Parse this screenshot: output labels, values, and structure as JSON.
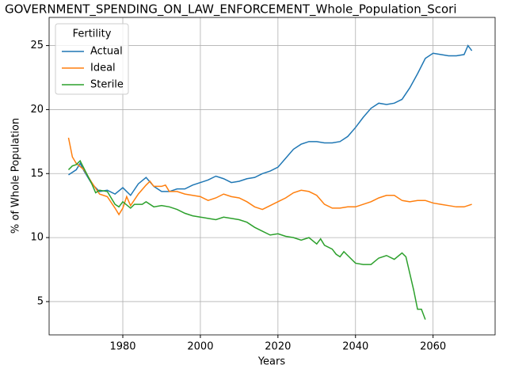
{
  "chart_data": {
    "type": "line",
    "title": "GOVERNMENT_SPENDING_ON_LAW_ENFORCEMENT_Whole_Population_Scori",
    "xlabel": "Years",
    "ylabel": "% of Whole Population",
    "legend_title": "Fertility",
    "legend": "upper left",
    "grid": true,
    "xlim": [
      1961,
      2076
    ],
    "ylim": [
      2.4,
      27.2
    ],
    "xticks": [
      1980,
      2000,
      2020,
      2040,
      2060
    ],
    "yticks": [
      5,
      10,
      15,
      20,
      25
    ],
    "series": [
      {
        "name": "Actual",
        "color": "#1f77b4",
        "x": [
          1966,
          1968,
          1969,
          1970,
          1972,
          1974,
          1976,
          1978,
          1980,
          1982,
          1984,
          1986,
          1988,
          1990,
          1992,
          1994,
          1996,
          1998,
          2000,
          2002,
          2004,
          2006,
          2008,
          2010,
          2012,
          2014,
          2016,
          2018,
          2020,
          2022,
          2024,
          2026,
          2028,
          2030,
          2032,
          2034,
          2036,
          2038,
          2040,
          2042,
          2044,
          2046,
          2048,
          2050,
          2052,
          2054,
          2056,
          2058,
          2060,
          2062,
          2064,
          2066,
          2068,
          2069,
          2070
        ],
        "values": [
          14.9,
          15.3,
          15.8,
          15.2,
          14.2,
          13.6,
          13.7,
          13.4,
          13.9,
          13.3,
          14.2,
          14.7,
          14.0,
          13.6,
          13.6,
          13.8,
          13.8,
          14.1,
          14.3,
          14.5,
          14.8,
          14.6,
          14.3,
          14.4,
          14.6,
          14.7,
          15.0,
          15.2,
          15.5,
          16.2,
          16.9,
          17.3,
          17.5,
          17.5,
          17.4,
          17.4,
          17.5,
          17.9,
          18.6,
          19.4,
          20.1,
          20.5,
          20.4,
          20.5,
          20.8,
          21.7,
          22.8,
          24.0,
          24.4,
          24.3,
          24.2,
          24.2,
          24.3,
          25.0,
          24.6
        ]
      },
      {
        "name": "Ideal",
        "color": "#ff7f0e",
        "x": [
          1966,
          1967,
          1968,
          1970,
          1972,
          1974,
          1976,
          1978,
          1979,
          1980,
          1981,
          1982,
          1984,
          1986,
          1987,
          1988,
          1990,
          1991,
          1992,
          1994,
          1996,
          1998,
          2000,
          2002,
          2004,
          2006,
          2008,
          2010,
          2012,
          2014,
          2016,
          2018,
          2020,
          2022,
          2024,
          2026,
          2028,
          2030,
          2032,
          2034,
          2036,
          2038,
          2040,
          2042,
          2044,
          2046,
          2048,
          2050,
          2052,
          2054,
          2056,
          2058,
          2060,
          2062,
          2064,
          2066,
          2068,
          2070
        ],
        "values": [
          17.8,
          16.3,
          15.8,
          15.3,
          14.3,
          13.4,
          13.2,
          12.3,
          11.8,
          12.3,
          13.2,
          12.5,
          13.4,
          14.1,
          14.4,
          14.0,
          14.0,
          14.1,
          13.6,
          13.6,
          13.4,
          13.3,
          13.2,
          12.9,
          13.1,
          13.4,
          13.2,
          13.1,
          12.8,
          12.4,
          12.2,
          12.5,
          12.8,
          13.1,
          13.5,
          13.7,
          13.6,
          13.3,
          12.6,
          12.3,
          12.3,
          12.4,
          12.4,
          12.6,
          12.8,
          13.1,
          13.3,
          13.3,
          12.9,
          12.8,
          12.9,
          12.9,
          12.7,
          12.6,
          12.5,
          12.4,
          12.4,
          12.6
        ]
      },
      {
        "name": "Sterile",
        "color": "#2ca02c",
        "x": [
          1966,
          1967,
          1968,
          1969,
          1970,
          1972,
          1973,
          1974,
          1976,
          1978,
          1979,
          1980,
          1982,
          1983,
          1985,
          1986,
          1988,
          1990,
          1992,
          1994,
          1996,
          1998,
          2000,
          2002,
          2004,
          2006,
          2008,
          2010,
          2012,
          2014,
          2016,
          2018,
          2020,
          2022,
          2024,
          2026,
          2028,
          2030,
          2031,
          2032,
          2034,
          2035,
          2036,
          2037,
          2038,
          2040,
          2042,
          2044,
          2046,
          2048,
          2050,
          2052,
          2053,
          2054,
          2055,
          2056,
          2057,
          2058
        ],
        "values": [
          15.3,
          15.6,
          15.7,
          16.0,
          15.4,
          14.2,
          13.5,
          13.7,
          13.6,
          12.6,
          12.4,
          12.8,
          12.3,
          12.6,
          12.6,
          12.8,
          12.4,
          12.5,
          12.4,
          12.2,
          11.9,
          11.7,
          11.6,
          11.5,
          11.4,
          11.6,
          11.5,
          11.4,
          11.2,
          10.8,
          10.5,
          10.2,
          10.3,
          10.1,
          10.0,
          9.8,
          10.0,
          9.5,
          9.9,
          9.4,
          9.1,
          8.7,
          8.5,
          8.9,
          8.6,
          8.0,
          7.9,
          7.9,
          8.4,
          8.6,
          8.3,
          8.8,
          8.5,
          7.2,
          5.9,
          4.4,
          4.4,
          3.6
        ]
      }
    ]
  }
}
